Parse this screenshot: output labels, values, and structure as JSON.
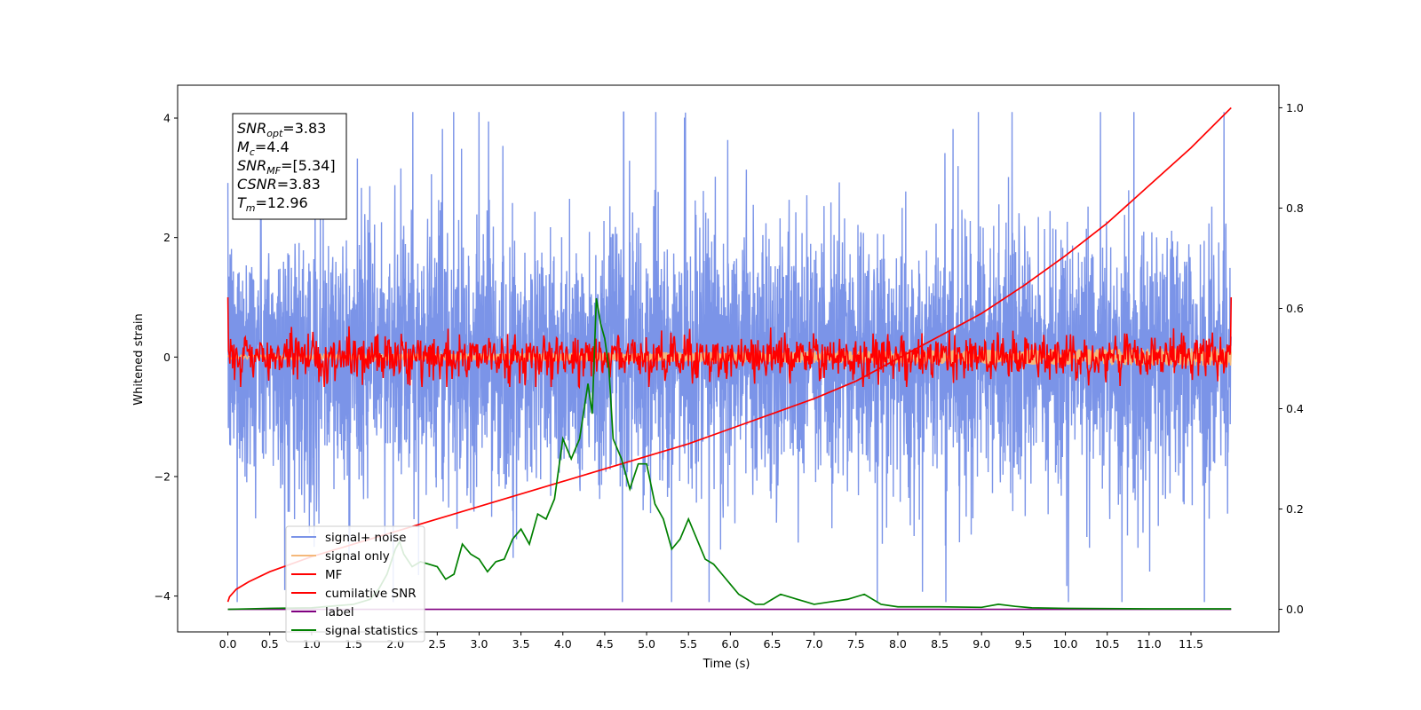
{
  "chart_data": {
    "type": "line",
    "xlabel": "Time (s)",
    "ylabel": "Whitened strain",
    "xlim": [
      -0.6,
      12.55
    ],
    "ylim_left": [
      -4.6,
      4.55
    ],
    "ylim_right": [
      -0.045,
      1.045
    ],
    "x_ticks": [
      0.0,
      0.5,
      1.0,
      1.5,
      2.0,
      2.5,
      3.0,
      3.5,
      4.0,
      4.5,
      5.0,
      5.5,
      6.0,
      6.5,
      7.0,
      7.5,
      8.0,
      8.5,
      9.0,
      9.5,
      10.0,
      10.5,
      11.0,
      11.5
    ],
    "x_tick_labels": [
      "0.0",
      "0.5",
      "1.0",
      "1.5",
      "2.0",
      "2.5",
      "3.0",
      "3.5",
      "4.0",
      "4.5",
      "5.0",
      "5.5",
      "6.0",
      "6.5",
      "7.0",
      "7.5",
      "8.0",
      "8.5",
      "9.0",
      "9.5",
      "10.0",
      "10.5",
      "11.0",
      "11.5"
    ],
    "y_ticks_left": [
      -4,
      -2,
      0,
      2,
      4
    ],
    "y_tick_labels_left": [
      "−4",
      "−2",
      "0",
      "2",
      "4"
    ],
    "y_ticks_right": [
      0.0,
      0.2,
      0.4,
      0.6,
      0.8,
      1.0
    ],
    "y_tick_labels_right": [
      "0.0",
      "0.2",
      "0.4",
      "0.6",
      "0.8",
      "1.0"
    ],
    "grid": false,
    "legend_position": "lower-left",
    "series": [
      {
        "name": "signal+ noise",
        "color": "#7b94e8",
        "axis": "left",
        "description_values": {
          "x_start": 0.0,
          "x_end": 11.98,
          "mean": 0.0,
          "spread_approx": 1.6,
          "max": 4.1,
          "min": -4.1
        }
      },
      {
        "name": "signal only",
        "color": "#f5b87a",
        "axis": "left",
        "description_values": {
          "x_start": 0.0,
          "x_end": 11.98,
          "amplitude_start": 0.03,
          "amplitude_end": 0.15
        }
      },
      {
        "name": "MF",
        "color": "#ff0000",
        "axis": "left",
        "description_values": {
          "x_start": 0.0,
          "x_end": 11.98,
          "value_at_start": 1.0,
          "value_at_end": 1.0,
          "typical_amplitude": 0.25
        }
      },
      {
        "name": "cumilative SNR",
        "color": "#ff0000",
        "axis": "right",
        "x": [
          0.0,
          0.02,
          0.1,
          0.25,
          0.5,
          1.0,
          1.5,
          2.0,
          2.5,
          3.0,
          3.5,
          4.0,
          4.5,
          5.0,
          5.5,
          6.0,
          6.5,
          7.0,
          7.5,
          8.0,
          8.5,
          9.0,
          9.5,
          10.0,
          10.5,
          11.0,
          11.5,
          11.98
        ],
        "values": [
          0.015,
          0.025,
          0.04,
          0.055,
          0.075,
          0.105,
          0.13,
          0.155,
          0.18,
          0.205,
          0.23,
          0.255,
          0.28,
          0.305,
          0.33,
          0.36,
          0.39,
          0.42,
          0.455,
          0.5,
          0.545,
          0.59,
          0.645,
          0.705,
          0.77,
          0.845,
          0.92,
          1.0
        ]
      },
      {
        "name": "label",
        "color": "#800080",
        "axis": "right",
        "x": [
          0.0,
          11.98
        ],
        "values": [
          0.0,
          0.0
        ]
      },
      {
        "name": "signal statistics",
        "color": "#008000",
        "axis": "right",
        "x": [
          0.0,
          0.5,
          1.0,
          1.5,
          1.7,
          1.8,
          1.9,
          2.0,
          2.05,
          2.1,
          2.2,
          2.3,
          2.4,
          2.5,
          2.6,
          2.7,
          2.8,
          2.9,
          3.0,
          3.1,
          3.2,
          3.3,
          3.4,
          3.5,
          3.6,
          3.7,
          3.8,
          3.9,
          4.0,
          4.1,
          4.2,
          4.3,
          4.35,
          4.4,
          4.45,
          4.5,
          4.55,
          4.6,
          4.7,
          4.8,
          4.9,
          5.0,
          5.1,
          5.2,
          5.3,
          5.4,
          5.5,
          5.6,
          5.7,
          5.8,
          5.9,
          6.0,
          6.1,
          6.2,
          6.3,
          6.4,
          6.5,
          6.6,
          6.7,
          6.8,
          6.9,
          7.0,
          7.2,
          7.4,
          7.6,
          7.8,
          8.0,
          8.5,
          9.0,
          9.2,
          9.4,
          9.6,
          10.0,
          11.0,
          11.98
        ],
        "values": [
          0.0,
          0.002,
          0.003,
          0.01,
          0.02,
          0.04,
          0.07,
          0.12,
          0.135,
          0.11,
          0.085,
          0.095,
          0.09,
          0.085,
          0.06,
          0.07,
          0.13,
          0.11,
          0.1,
          0.075,
          0.095,
          0.1,
          0.14,
          0.16,
          0.13,
          0.19,
          0.18,
          0.22,
          0.34,
          0.3,
          0.34,
          0.45,
          0.39,
          0.62,
          0.57,
          0.54,
          0.48,
          0.34,
          0.3,
          0.24,
          0.29,
          0.29,
          0.21,
          0.18,
          0.12,
          0.14,
          0.18,
          0.14,
          0.1,
          0.09,
          0.07,
          0.05,
          0.03,
          0.02,
          0.01,
          0.01,
          0.02,
          0.03,
          0.025,
          0.02,
          0.015,
          0.01,
          0.015,
          0.02,
          0.03,
          0.01,
          0.005,
          0.005,
          0.004,
          0.01,
          0.006,
          0.003,
          0.002,
          0.001,
          0.001
        ]
      }
    ],
    "annotation": {
      "lines": [
        {
          "base": "SNR",
          "sub": "opt",
          "rest": "=3.83"
        },
        {
          "base": "M",
          "sub": "c",
          "rest": "=4.4"
        },
        {
          "base": "SNR",
          "sub": "MF",
          "rest": "=[5.34]"
        },
        {
          "base": "CSNR",
          "sub": "",
          "rest": "=3.83"
        },
        {
          "base": "T",
          "sub": "m",
          "rest": "=12.96"
        }
      ]
    }
  }
}
